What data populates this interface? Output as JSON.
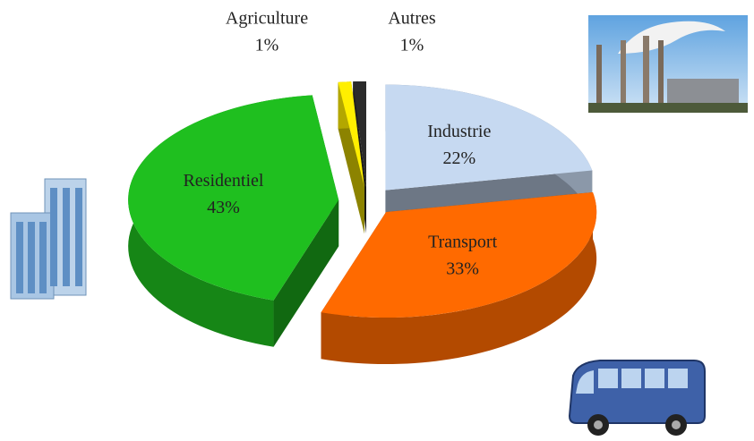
{
  "chart_data": {
    "type": "pie",
    "categories": [
      "Industrie",
      "Transport",
      "Residentiel",
      "Agriculture",
      "Autres"
    ],
    "values": [
      22,
      33,
      43,
      1,
      1
    ],
    "value_labels": [
      "22%",
      "33%",
      "43%",
      "1%",
      "1%"
    ],
    "colors": [
      "#c6d9f1",
      "#ff6a00",
      "#1fbf1f",
      "#ffef00",
      "#2b2b2b"
    ]
  }
}
